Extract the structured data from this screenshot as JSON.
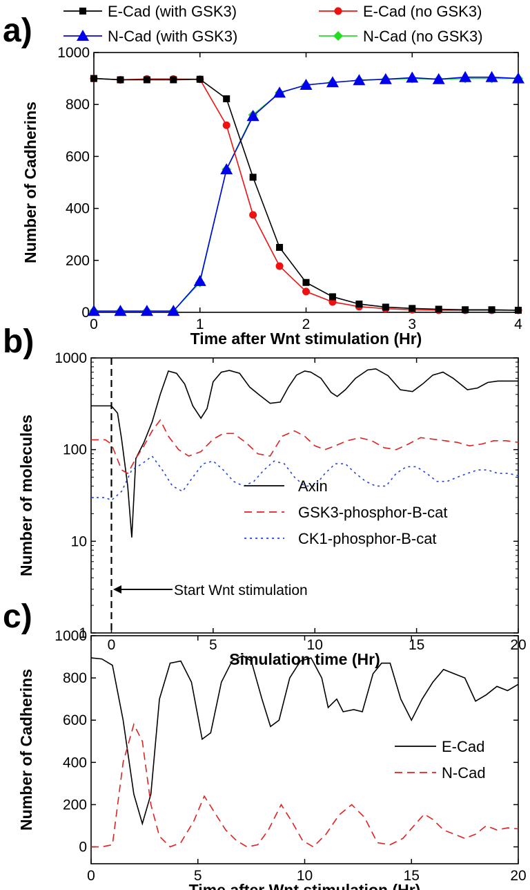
{
  "panels": {
    "a": {
      "label": "a)"
    },
    "b": {
      "label": "b)"
    },
    "c": {
      "label": "c)"
    }
  },
  "chart_data": [
    {
      "panel": "a)",
      "type": "line",
      "xlabel": "Time after Wnt stimulation (Hr)",
      "ylabel": "Number of Cadherins",
      "xlim": [
        0,
        4
      ],
      "ylim": [
        0,
        1000
      ],
      "x_ticks": [
        0,
        1,
        2,
        3,
        4
      ],
      "y_ticks": [
        0,
        200,
        400,
        600,
        800,
        1000
      ],
      "legend_position": "top, above plot, two columns",
      "x": [
        0,
        0.25,
        0.5,
        0.75,
        1.0,
        1.25,
        1.5,
        1.75,
        2.0,
        2.25,
        2.5,
        2.75,
        3.0,
        3.25,
        3.5,
        3.75,
        4.0
      ],
      "series": [
        {
          "name": "E-Cad (with GSK3)",
          "color": "#000000",
          "marker": "square",
          "values": [
            900,
            895,
            895,
            895,
            897,
            822,
            520,
            250,
            115,
            60,
            32,
            20,
            15,
            12,
            10,
            10,
            8
          ]
        },
        {
          "name": "E-Cad (no GSK3)",
          "color": "#ee1111",
          "marker": "circle",
          "values": [
            900,
            895,
            898,
            898,
            897,
            720,
            375,
            178,
            80,
            40,
            22,
            14,
            10,
            8,
            8,
            8,
            8
          ]
        },
        {
          "name": "N-Cad (with GSK3)",
          "color": "#0000ee",
          "marker": "triangle",
          "values": [
            5,
            5,
            5,
            5,
            120,
            550,
            755,
            845,
            875,
            885,
            893,
            897,
            903,
            897,
            905,
            905,
            900
          ]
        },
        {
          "name": "N-Cad (no GSK3)",
          "color": "#22dd22",
          "marker": "diamond",
          "values": [
            5,
            5,
            5,
            5,
            115,
            550,
            760,
            845,
            875,
            885,
            893,
            897,
            900,
            897,
            900,
            900,
            900
          ]
        }
      ]
    },
    {
      "panel": "b)",
      "type": "line",
      "xlabel": "Simulation time (Hr)",
      "ylabel": "Number of molecules",
      "xlim": [
        -1,
        20
      ],
      "ylim": [
        1,
        1000
      ],
      "yscale": "log",
      "x_ticks": [
        0,
        5,
        10,
        15,
        20
      ],
      "y_ticks": [
        1,
        10,
        100,
        1000
      ],
      "legend_position": "center-right",
      "annotation": {
        "text": "Start Wnt stimulation",
        "x": 0
      },
      "series": [
        {
          "name": "Axin",
          "color": "#000000",
          "dash": "solid",
          "x": [
            -1,
            -0.3,
            0,
            0.3,
            0.5,
            0.8,
            1.0,
            1.2,
            1.6,
            2.0,
            2.4,
            2.8,
            3.2,
            3.6,
            4.0,
            4.4,
            4.7,
            5.0,
            5.4,
            5.8,
            6.3,
            6.8,
            7.3,
            7.8,
            8.3,
            8.7,
            9.1,
            9.5,
            9.8,
            10.3,
            10.8,
            11.1,
            11.5,
            12.0,
            12.6,
            13.0,
            13.6,
            14.2,
            14.8,
            15.3,
            15.8,
            16.3,
            16.8,
            17.5,
            18.0,
            18.5,
            19.0,
            19.5,
            20
          ],
          "values": [
            300,
            300,
            300,
            250,
            130,
            40,
            11,
            80,
            120,
            200,
            400,
            720,
            680,
            520,
            300,
            220,
            280,
            550,
            700,
            730,
            680,
            480,
            390,
            320,
            330,
            480,
            650,
            720,
            700,
            600,
            420,
            380,
            450,
            600,
            740,
            760,
            640,
            450,
            430,
            520,
            650,
            700,
            600,
            450,
            470,
            540,
            560,
            560,
            560
          ]
        },
        {
          "name": "GSK3-phosphor-B-cat",
          "color": "#e02020",
          "dash": "11 7",
          "x": [
            -1,
            -0.3,
            0,
            0.5,
            0.8,
            1.2,
            1.6,
            2.0,
            2.4,
            2.8,
            3.3,
            3.8,
            4.4,
            5.0,
            5.5,
            6.0,
            6.6,
            7.2,
            7.8,
            8.4,
            9.0,
            9.5,
            10.0,
            10.5,
            11.0,
            11.6,
            12.2,
            12.8,
            13.4,
            14.0,
            14.6,
            15.2,
            15.8,
            16.4,
            17.0,
            17.6,
            18.2,
            18.8,
            19.4,
            20
          ],
          "values": [
            128,
            128,
            115,
            60,
            55,
            80,
            110,
            160,
            210,
            140,
            100,
            85,
            95,
            130,
            150,
            150,
            120,
            90,
            85,
            140,
            160,
            140,
            110,
            100,
            110,
            125,
            135,
            125,
            105,
            100,
            115,
            135,
            130,
            125,
            120,
            110,
            115,
            125,
            125,
            120
          ]
        },
        {
          "name": "CK1-phosphor-B-cat",
          "color": "#2040e0",
          "dash": "3 5",
          "x": [
            -1,
            -0.3,
            0,
            0.5,
            1.0,
            1.5,
            2.0,
            2.5,
            3.0,
            3.5,
            4.0,
            4.5,
            5.0,
            5.5,
            6.0,
            6.5,
            7.0,
            7.5,
            8.0,
            8.5,
            9.0,
            9.5,
            10.0,
            10.5,
            11.0,
            11.5,
            12.0,
            12.5,
            13.0,
            13.5,
            14.0,
            14.5,
            15.0,
            15.5,
            16.0,
            16.5,
            17.0,
            17.5,
            18.0,
            18.5,
            19.0,
            19.5,
            20
          ],
          "values": [
            30,
            30,
            28,
            35,
            60,
            70,
            85,
            60,
            40,
            35,
            50,
            70,
            75,
            60,
            45,
            40,
            45,
            60,
            75,
            70,
            50,
            40,
            40,
            55,
            70,
            70,
            55,
            45,
            40,
            40,
            55,
            65,
            65,
            55,
            45,
            45,
            50,
            55,
            60,
            60,
            55,
            55,
            52
          ]
        }
      ]
    },
    {
      "panel": "c)",
      "type": "line",
      "xlabel": "Time after Wnt stimulation (Hr)",
      "ylabel": "Number of Cadherins",
      "xlim": [
        0,
        20
      ],
      "ylim": [
        -80,
        1000
      ],
      "x_ticks": [
        0,
        5,
        10,
        15,
        20
      ],
      "y_ticks": [
        0,
        200,
        400,
        600,
        800,
        1000
      ],
      "legend_position": "center-right",
      "series": [
        {
          "name": "E-Cad",
          "color": "#000000",
          "dash": "solid",
          "x": [
            0,
            0.5,
            1.0,
            1.5,
            2.0,
            2.4,
            2.8,
            3.2,
            3.7,
            4.2,
            4.7,
            5.2,
            5.6,
            6.1,
            6.6,
            7.1,
            7.5,
            8.0,
            8.4,
            8.8,
            9.3,
            9.8,
            10.3,
            10.8,
            11.1,
            11.5,
            11.8,
            12.3,
            12.7,
            13.2,
            13.6,
            14.0,
            14.5,
            15.0,
            15.5,
            16.0,
            16.5,
            17.0,
            17.5,
            18.0,
            18.5,
            19.0,
            19.5,
            20
          ],
          "values": [
            895,
            890,
            860,
            600,
            250,
            110,
            250,
            700,
            870,
            880,
            780,
            510,
            540,
            780,
            880,
            905,
            880,
            700,
            570,
            600,
            800,
            880,
            895,
            800,
            660,
            700,
            640,
            650,
            640,
            820,
            870,
            870,
            700,
            600,
            700,
            780,
            840,
            820,
            800,
            690,
            720,
            760,
            740,
            770
          ]
        },
        {
          "name": "N-Cad",
          "color": "#e02020",
          "dash": "11 7",
          "x": [
            0,
            0.5,
            1.0,
            1.5,
            2.0,
            2.4,
            2.8,
            3.2,
            3.7,
            4.2,
            4.8,
            5.3,
            5.8,
            6.3,
            6.8,
            7.3,
            7.8,
            8.3,
            8.9,
            9.4,
            9.9,
            10.4,
            11.0,
            11.6,
            12.2,
            12.8,
            13.4,
            14.0,
            14.6,
            15.2,
            15.6,
            16.0,
            16.5,
            17.0,
            17.5,
            18.0,
            18.5,
            19.0,
            19.5,
            20
          ],
          "values": [
            0,
            0,
            10,
            400,
            580,
            500,
            200,
            50,
            0,
            20,
            120,
            240,
            160,
            80,
            30,
            0,
            10,
            80,
            200,
            120,
            30,
            0,
            60,
            150,
            200,
            140,
            20,
            10,
            40,
            110,
            155,
            130,
            80,
            60,
            40,
            60,
            100,
            80,
            90,
            85
          ]
        }
      ]
    }
  ]
}
